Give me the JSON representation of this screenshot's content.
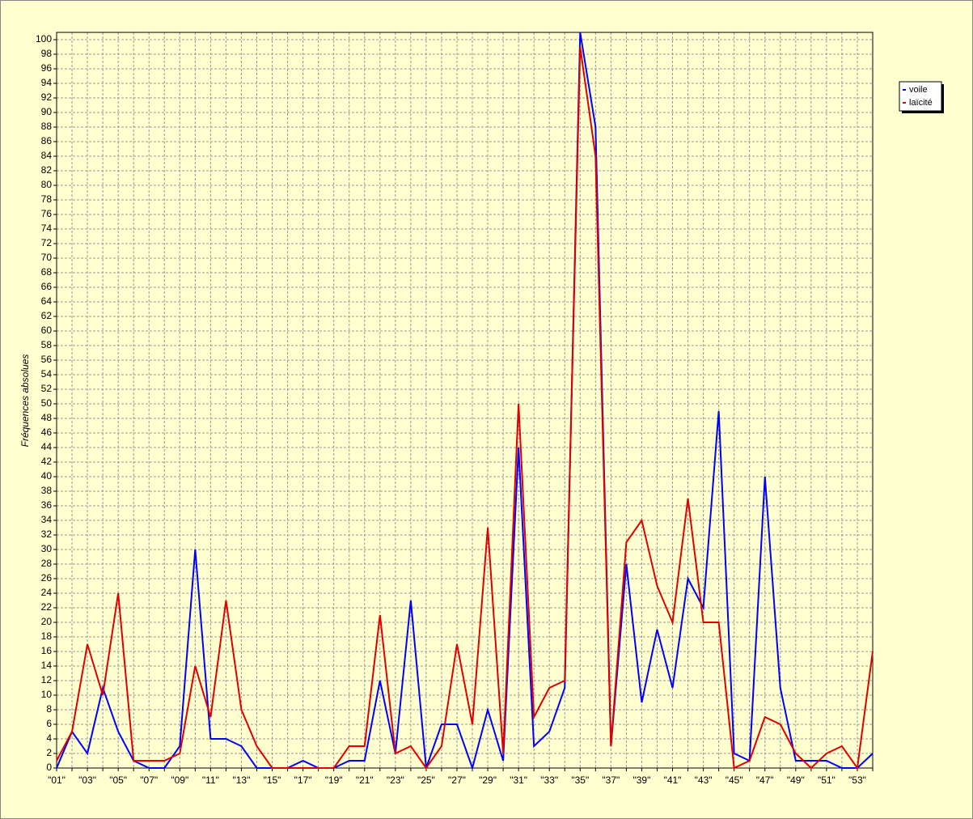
{
  "chart_data": {
    "type": "line",
    "y_label": "Fréquences absolues",
    "categories": [
      "\"01\"",
      null,
      "\"03\"",
      null,
      "\"05\"",
      null,
      "\"07\"",
      null,
      "\"09\"",
      null,
      "\"11\"",
      null,
      "\"13\"",
      null,
      "\"15\"",
      null,
      "\"17\"",
      null,
      "\"19\"",
      null,
      "\"21\"",
      null,
      "\"23\"",
      null,
      "\"25\"",
      null,
      "\"27\"",
      null,
      "\"29\"",
      null,
      "\"31\"",
      null,
      "\"33\"",
      null,
      "\"35\"",
      null,
      "\"37\"",
      null,
      "\"39\"",
      null,
      "\"41\"",
      null,
      "\"43\"",
      null,
      "\"45\"",
      null,
      "\"47\"",
      null,
      "\"49\"",
      null,
      "\"51\"",
      null,
      "\"53\"",
      null
    ],
    "series": [
      {
        "name": "voile",
        "color": "#0000ff",
        "values": [
          0,
          5,
          2,
          11,
          5,
          1,
          0,
          0,
          3,
          30,
          4,
          4,
          3,
          0,
          0,
          0,
          1,
          0,
          0,
          1,
          1,
          12,
          2,
          23,
          0,
          6,
          6,
          0,
          8,
          1,
          44,
          3,
          5,
          11,
          101,
          88,
          3,
          28,
          9,
          19,
          11,
          26,
          22,
          49,
          2,
          1,
          40,
          11,
          1,
          1,
          1,
          0,
          0,
          2
        ]
      },
      {
        "name": "laïcité",
        "color": "#e00000",
        "values": [
          1,
          5,
          17,
          10,
          24,
          1,
          1,
          1,
          2,
          14,
          7,
          23,
          8,
          3,
          0,
          0,
          0,
          0,
          0,
          3,
          3,
          21,
          2,
          3,
          0,
          3,
          17,
          6,
          33,
          2,
          50,
          7,
          11,
          12,
          99,
          84,
          3,
          31,
          34,
          25,
          20,
          37,
          20,
          20,
          0,
          1,
          7,
          6,
          2,
          0,
          2,
          3,
          0,
          16
        ]
      }
    ],
    "ylim": [
      0,
      101
    ],
    "yticks": [
      0,
      2,
      4,
      6,
      8,
      10,
      12,
      14,
      16,
      18,
      20,
      22,
      24,
      26,
      28,
      30,
      32,
      34,
      36,
      38,
      40,
      42,
      44,
      46,
      48,
      50,
      52,
      54,
      56,
      58,
      60,
      62,
      64,
      66,
      68,
      70,
      72,
      74,
      76,
      78,
      80,
      82,
      84,
      86,
      88,
      90,
      92,
      94,
      96,
      98,
      100
    ],
    "grid": true,
    "legend": "top-right"
  }
}
